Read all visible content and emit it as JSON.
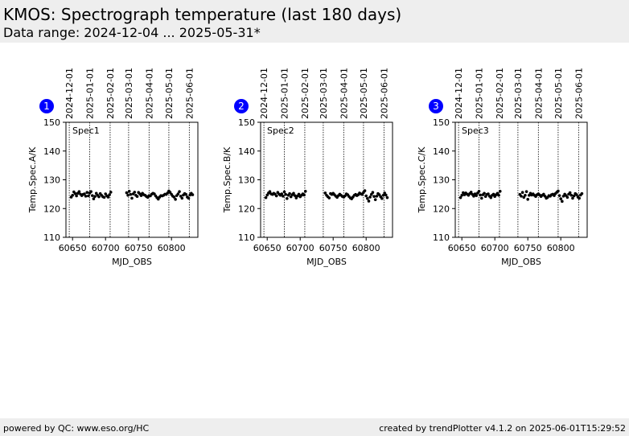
{
  "header": {
    "title": "KMOS: Spectrograph temperature (last 180 days)",
    "subtitle": "Data range: 2024-12-04 ... 2025-05-31*"
  },
  "footer": {
    "left": "powered by QC: www.eso.org/HC",
    "right": "created by trendPlotter v4.1.2 on 2025-06-01T15:29:52"
  },
  "colors": {
    "badge": "#0000ff",
    "points": "#000000",
    "header_bg": "#eeeeee"
  },
  "chart_data": [
    {
      "type": "scatter",
      "badge": "1",
      "label": "Spec1",
      "xlabel": "MJD_OBS",
      "ylabel": "Temp.Spec.A/K",
      "xlim": [
        60640,
        60840
      ],
      "ylim": [
        110,
        150
      ],
      "xticks": [
        60650,
        60700,
        60750,
        60800
      ],
      "yticks": [
        110,
        120,
        130,
        140,
        150
      ],
      "date_markers": [
        {
          "label": "2024-12-01",
          "mjd": 60645
        },
        {
          "label": "2025-01-01",
          "mjd": 60676
        },
        {
          "label": "2025-02-01",
          "mjd": 60707
        },
        {
          "label": "2025-03-01",
          "mjd": 60735
        },
        {
          "label": "2025-04-01",
          "mjd": 60766
        },
        {
          "label": "2025-05-01",
          "mjd": 60796
        },
        {
          "label": "2025-06-01",
          "mjd": 60827
        }
      ],
      "grid": false,
      "series": [
        {
          "x": [
            60648,
            60650,
            60652,
            60654,
            60656,
            60658,
            60660,
            60662,
            60664,
            60666,
            60668,
            60670,
            60672,
            60674,
            60676,
            60678,
            60680,
            60682,
            60684,
            60686,
            60688,
            60690,
            60692,
            60694,
            60696,
            60698,
            60700,
            60702,
            60704,
            60706,
            60708,
            60732,
            60734,
            60736,
            60738,
            60740,
            60742,
            60744,
            60746,
            60748,
            60750,
            60752,
            60754,
            60756,
            60758,
            60760,
            60762,
            60764,
            60766,
            60768,
            60770,
            60772,
            60774,
            60776,
            60778,
            60780,
            60782,
            60784,
            60786,
            60788,
            60790,
            60792,
            60794,
            60796,
            60798,
            60800,
            60802,
            60804,
            60806,
            60808,
            60810,
            60812,
            60814,
            60816,
            60818,
            60820,
            60822,
            60824,
            60826,
            60828,
            60830,
            60832
          ],
          "y": [
            124.0,
            124.6,
            125.8,
            125.2,
            124.4,
            125.3,
            125.9,
            125.0,
            124.5,
            124.9,
            125.1,
            124.3,
            125.6,
            124.4,
            125.4,
            125.9,
            124.5,
            123.4,
            124.2,
            125.3,
            124.6,
            124.1,
            125.2,
            124.6,
            124.1,
            123.9,
            125.1,
            124.4,
            124.0,
            124.8,
            125.7,
            125.5,
            124.6,
            126.0,
            124.9,
            123.6,
            125.1,
            125.7,
            124.6,
            124.2,
            125.6,
            125.1,
            124.5,
            125.3,
            124.8,
            124.6,
            124.2,
            123.9,
            124.5,
            124.4,
            125.0,
            125.3,
            125.1,
            124.4,
            123.8,
            123.3,
            124.0,
            124.5,
            124.4,
            124.6,
            125.0,
            124.9,
            125.4,
            126.1,
            125.6,
            124.9,
            124.3,
            124.0,
            123.2,
            124.5,
            125.1,
            125.9,
            124.3,
            123.6,
            124.7,
            125.2,
            124.9,
            124.0,
            123.6,
            124.7,
            125.3,
            124.8
          ]
        }
      ]
    },
    {
      "type": "scatter",
      "badge": "2",
      "label": "Spec2",
      "xlabel": "MJD_OBS",
      "ylabel": "Temp.Spec.B/K",
      "xlim": [
        60640,
        60840
      ],
      "ylim": [
        110,
        150
      ],
      "xticks": [
        60650,
        60700,
        60750,
        60800
      ],
      "yticks": [
        110,
        120,
        130,
        140,
        150
      ],
      "date_markers": [
        {
          "label": "2024-12-01",
          "mjd": 60645
        },
        {
          "label": "2025-01-01",
          "mjd": 60676
        },
        {
          "label": "2025-02-01",
          "mjd": 60707
        },
        {
          "label": "2025-03-01",
          "mjd": 60735
        },
        {
          "label": "2025-04-01",
          "mjd": 60766
        },
        {
          "label": "2025-05-01",
          "mjd": 60796
        },
        {
          "label": "2025-06-01",
          "mjd": 60827
        }
      ],
      "grid": false,
      "series": [
        {
          "x": [
            60648,
            60650,
            60652,
            60654,
            60656,
            60658,
            60660,
            60662,
            60664,
            60666,
            60668,
            60670,
            60672,
            60674,
            60676,
            60678,
            60680,
            60682,
            60684,
            60686,
            60688,
            60690,
            60692,
            60694,
            60696,
            60698,
            60700,
            60702,
            60704,
            60706,
            60708,
            60738,
            60740,
            60742,
            60744,
            60746,
            60748,
            60750,
            60752,
            60754,
            60756,
            60758,
            60760,
            60762,
            60764,
            60766,
            60768,
            60770,
            60772,
            60774,
            60776,
            60778,
            60780,
            60782,
            60784,
            60786,
            60788,
            60790,
            60792,
            60794,
            60796,
            60798,
            60800,
            60802,
            60804,
            60806,
            60808,
            60810,
            60812,
            60814,
            60816,
            60818,
            60820,
            60822,
            60824,
            60826,
            60828,
            60830,
            60832
          ],
          "y": [
            123.8,
            124.7,
            125.4,
            125.9,
            125.1,
            124.9,
            125.3,
            125.0,
            124.4,
            125.6,
            125.0,
            124.6,
            125.1,
            124.3,
            125.8,
            124.9,
            123.5,
            124.6,
            125.2,
            124.1,
            124.8,
            125.3,
            124.5,
            123.7,
            124.4,
            125.0,
            124.1,
            124.6,
            125.1,
            124.7,
            126.0,
            125.4,
            124.6,
            124.1,
            123.7,
            125.2,
            124.9,
            125.3,
            124.8,
            124.3,
            123.9,
            124.5,
            125.0,
            124.6,
            124.2,
            124.0,
            124.4,
            125.1,
            124.8,
            124.2,
            123.7,
            123.4,
            124.0,
            124.6,
            124.9,
            124.5,
            124.8,
            125.4,
            125.1,
            124.9,
            125.6,
            126.2,
            124.4,
            123.5,
            122.6,
            124.0,
            124.9,
            125.6,
            124.2,
            123.1,
            124.3,
            125.2,
            124.8,
            124.1,
            123.5,
            124.6,
            125.4,
            124.7,
            123.8
          ]
        }
      ]
    },
    {
      "type": "scatter",
      "badge": "3",
      "label": "Spec3",
      "xlabel": "MJD_OBS",
      "ylabel": "Temp.Spec.C/K",
      "xlim": [
        60640,
        60840
      ],
      "ylim": [
        110,
        150
      ],
      "xticks": [
        60650,
        60700,
        60750,
        60800
      ],
      "yticks": [
        110,
        120,
        130,
        140,
        150
      ],
      "date_markers": [
        {
          "label": "2024-12-01",
          "mjd": 60645
        },
        {
          "label": "2025-01-01",
          "mjd": 60676
        },
        {
          "label": "2025-02-01",
          "mjd": 60707
        },
        {
          "label": "2025-03-01",
          "mjd": 60735
        },
        {
          "label": "2025-04-01",
          "mjd": 60766
        },
        {
          "label": "2025-05-01",
          "mjd": 60796
        },
        {
          "label": "2025-06-01",
          "mjd": 60827
        }
      ],
      "grid": false,
      "series": [
        {
          "x": [
            60648,
            60650,
            60652,
            60654,
            60656,
            60658,
            60660,
            60662,
            60664,
            60666,
            60668,
            60670,
            60672,
            60674,
            60676,
            60678,
            60680,
            60682,
            60684,
            60686,
            60688,
            60690,
            60692,
            60694,
            60696,
            60698,
            60700,
            60702,
            60704,
            60706,
            60708,
            60738,
            60740,
            60742,
            60744,
            60746,
            60748,
            60750,
            60752,
            60754,
            60756,
            60758,
            60760,
            60762,
            60764,
            60766,
            60768,
            60770,
            60772,
            60774,
            60776,
            60778,
            60780,
            60782,
            60784,
            60786,
            60788,
            60790,
            60792,
            60794,
            60796,
            60798,
            60800,
            60802,
            60804,
            60806,
            60808,
            60810,
            60812,
            60814,
            60816,
            60818,
            60820,
            60822,
            60824,
            60826,
            60828,
            60830,
            60832
          ],
          "y": [
            123.8,
            124.6,
            125.5,
            124.8,
            125.4,
            125.0,
            124.6,
            125.2,
            125.7,
            124.9,
            124.3,
            125.1,
            124.5,
            125.4,
            126.0,
            124.7,
            123.6,
            124.8,
            125.3,
            124.2,
            124.9,
            125.1,
            124.3,
            123.8,
            124.6,
            125.0,
            124.2,
            124.8,
            125.3,
            124.6,
            126.0,
            124.9,
            124.3,
            125.6,
            123.9,
            124.6,
            125.9,
            123.2,
            124.6,
            125.3,
            124.7,
            125.1,
            124.6,
            124.2,
            124.8,
            125.1,
            124.7,
            124.2,
            124.6,
            125.0,
            124.3,
            123.6,
            123.9,
            124.5,
            124.3,
            124.8,
            125.0,
            124.5,
            125.2,
            125.7,
            126.1,
            124.5,
            123.4,
            122.5,
            124.3,
            125.0,
            124.5,
            123.9,
            125.0,
            125.5,
            124.6,
            123.6,
            124.4,
            125.2,
            124.8,
            124.0,
            123.6,
            124.7,
            125.2
          ]
        }
      ]
    }
  ]
}
